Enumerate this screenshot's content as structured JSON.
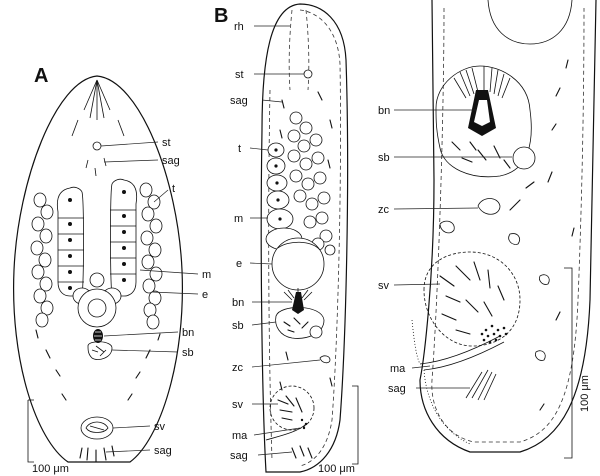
{
  "panels": {
    "a": {
      "letter": "A",
      "labels": {
        "st": "st",
        "sag_top": "sag",
        "t": "t",
        "m": "m",
        "e": "e",
        "bn": "bn",
        "sb": "sb",
        "sv": "sv",
        "sag_bottom": "sag"
      },
      "scale": "100 μm"
    },
    "b": {
      "letter": "B",
      "labels": {
        "rh": "rh",
        "st": "st",
        "sag": "sag",
        "t": "t",
        "m": "m",
        "e": "e",
        "bn": "bn",
        "sb": "sb",
        "zc": "zc",
        "sv": "sv",
        "ma": "ma",
        "sag_bottom": "sag"
      },
      "scale": "100 μm"
    },
    "c": {
      "labels": {
        "bn": "bn",
        "sb": "sb",
        "zc": "zc",
        "sv": "sv",
        "ma": "ma",
        "sag": "sag"
      },
      "scale": "100 μm"
    }
  }
}
